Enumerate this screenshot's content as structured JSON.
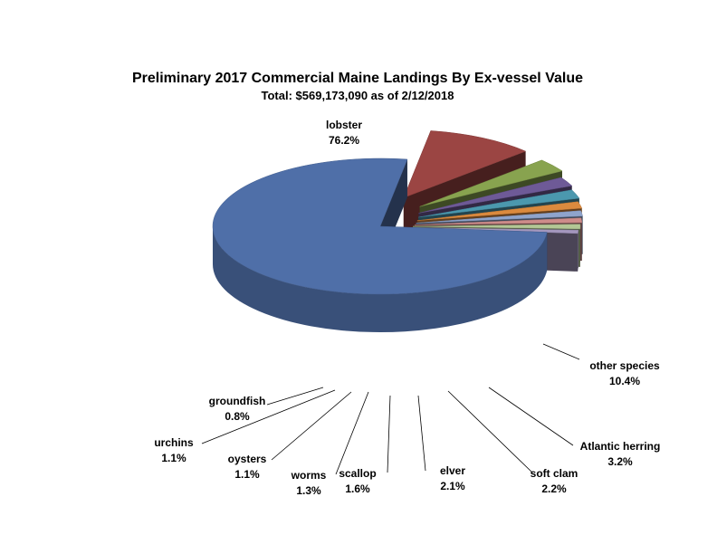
{
  "chart_data": {
    "type": "pie",
    "style": "3d-exploded",
    "title": "Preliminary 2017 Commercial Maine Landings By Ex-vessel Value",
    "subtitle": "Total: $569,173,090 as of 2/12/2018",
    "slices": [
      {
        "name": "lobster",
        "value": 76.2,
        "label": "76.2%",
        "color": "#4F6FA8"
      },
      {
        "name": "other species",
        "value": 10.4,
        "label": "10.4%",
        "color": "#9B4543"
      },
      {
        "name": "Atlantic herring",
        "value": 3.2,
        "label": "3.2%",
        "color": "#88A34F"
      },
      {
        "name": "soft clam",
        "value": 2.2,
        "label": "2.2%",
        "color": "#6E5A97"
      },
      {
        "name": "elver",
        "value": 2.1,
        "label": "2.1%",
        "color": "#4B98AE"
      },
      {
        "name": "scallop",
        "value": 1.6,
        "label": "1.6%",
        "color": "#DB8A3E"
      },
      {
        "name": "worms",
        "value": 1.3,
        "label": "1.3%",
        "color": "#8FA4CC"
      },
      {
        "name": "oysters",
        "value": 1.1,
        "label": "1.1%",
        "color": "#CE8C8A"
      },
      {
        "name": "urchins",
        "value": 1.1,
        "label": "1.1%",
        "color": "#B3C795"
      },
      {
        "name": "groundfish",
        "value": 0.8,
        "label": "0.8%",
        "color": "#A497BE"
      }
    ]
  }
}
